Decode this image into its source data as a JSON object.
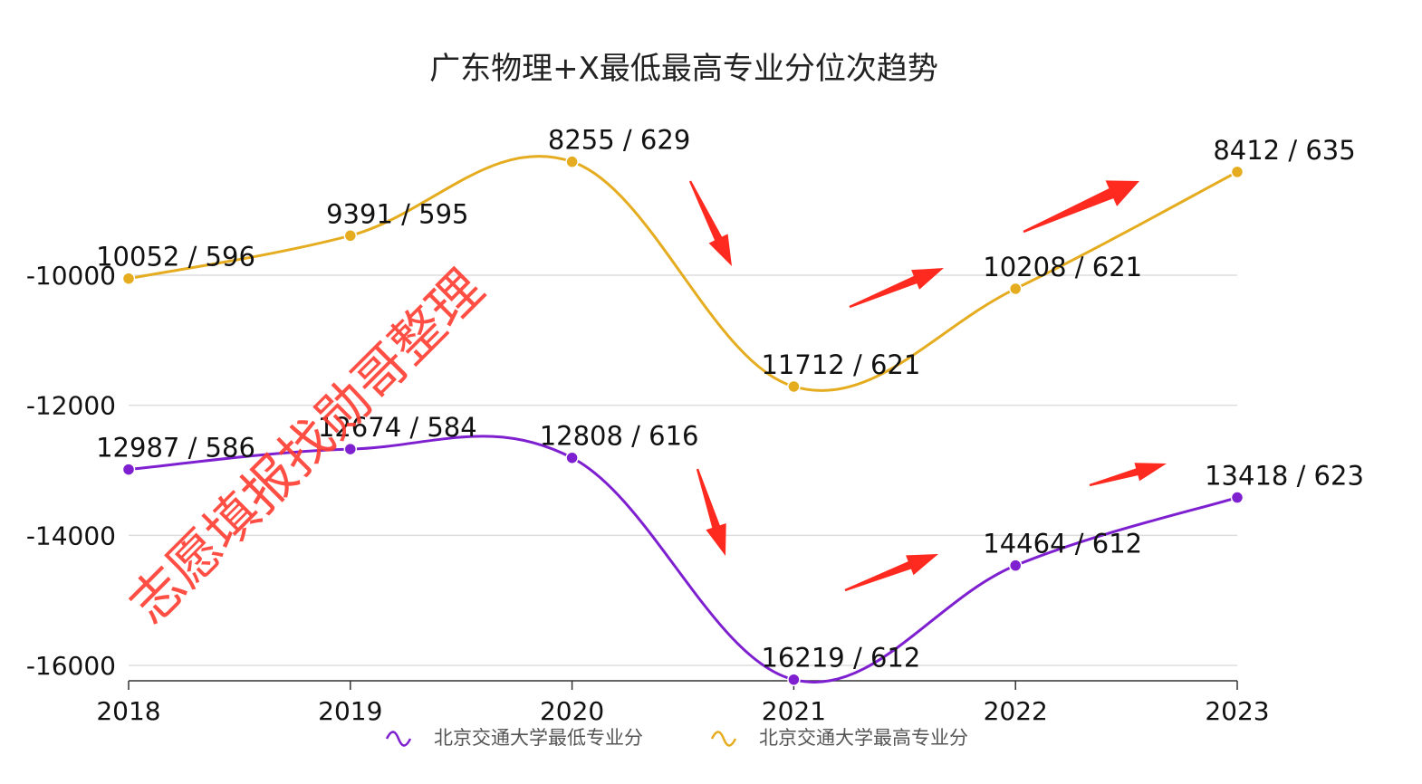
{
  "chart_data": {
    "type": "line",
    "title": "广东物理+X最低最高专业分位次趋势",
    "categories": [
      "2018",
      "2019",
      "2020",
      "2021",
      "2022",
      "2023"
    ],
    "y_ticks": [
      "-10000",
      "-12000",
      "-14000",
      "-16000"
    ],
    "y_tick_values": [
      -10000,
      -12000,
      -14000,
      -16000
    ],
    "ylim": [
      -16200,
      -8000
    ],
    "grid": true,
    "legend_position": "bottom",
    "series": [
      {
        "name": "北京交通大学最低专业分",
        "color": "#7e1fd0",
        "values": [
          -12987,
          -12674,
          -12808,
          -16219,
          -14464,
          -13418
        ],
        "labels": [
          "12987 / 586",
          "12674 / 584",
          "12808 / 616",
          "16219 / 612",
          "14464 / 612",
          "13418 / 623"
        ]
      },
      {
        "name": "北京交通大学最高专业分",
        "color": "#e5ac1f",
        "values": [
          -10052,
          -9391,
          -8255,
          -11712,
          -10208,
          -8412
        ],
        "labels": [
          "10052 / 596",
          "9391 / 595",
          "8255 / 629",
          "11712 / 621",
          "10208 / 621",
          "8412 / 635"
        ]
      }
    ],
    "annotations": {
      "watermark": "志愿填报找勋哥整理",
      "arrow_color": "#ff2a1f"
    }
  }
}
